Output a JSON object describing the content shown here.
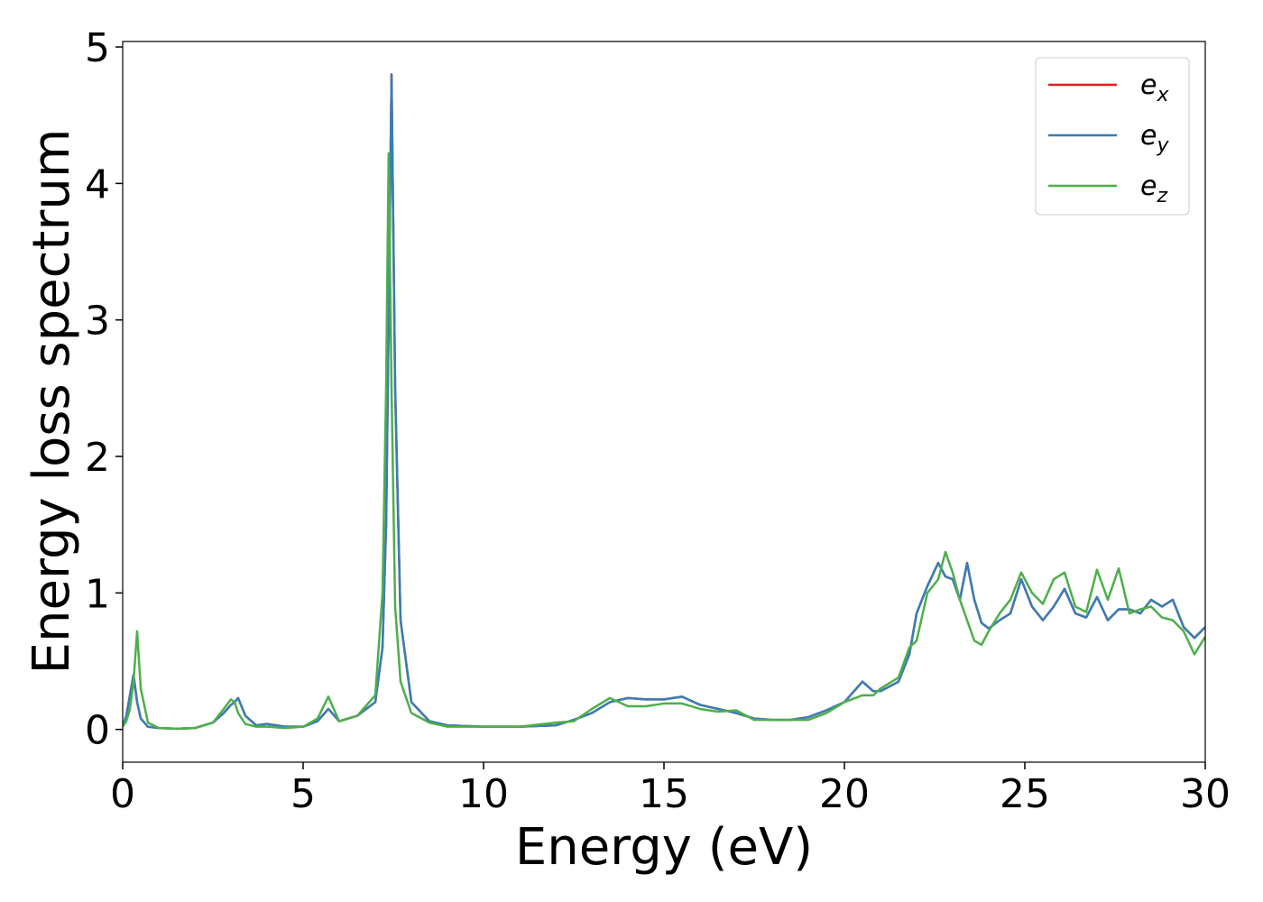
{
  "chart_data": {
    "type": "line",
    "xlabel": "Energy (eV)",
    "ylabel": "Energy loss spectrum",
    "x": [
      0,
      0.1,
      0.2,
      0.3,
      0.4,
      0.5,
      0.7,
      1,
      1.5,
      2,
      2.5,
      2.8,
      3.0,
      3.1,
      3.2,
      3.4,
      3.7,
      4,
      4.5,
      5,
      5.4,
      5.7,
      6,
      6.5,
      7,
      7.2,
      7.3,
      7.37,
      7.45,
      7.55,
      7.7,
      8,
      8.5,
      9,
      10,
      11,
      12,
      12.5,
      13,
      13.5,
      14,
      14.5,
      15,
      15.5,
      16,
      16.5,
      17,
      17.5,
      18,
      18.5,
      19,
      19.5,
      20,
      20.5,
      20.8,
      21,
      21.5,
      21.8,
      22,
      22.3,
      22.6,
      22.8,
      23,
      23.2,
      23.4,
      23.6,
      23.8,
      24,
      24.3,
      24.6,
      24.9,
      25.2,
      25.5,
      25.8,
      26.1,
      26.4,
      26.7,
      27,
      27.3,
      27.6,
      27.9,
      28.2,
      28.5,
      28.8,
      29.1,
      29.4,
      29.7,
      30
    ],
    "series": [
      {
        "name": "ex",
        "color": "#e41a1c",
        "values": [
          0.02,
          0.1,
          0.25,
          0.4,
          0.2,
          0.08,
          0.02,
          0.01,
          0.005,
          0.01,
          0.05,
          0.12,
          0.18,
          0.2,
          0.23,
          0.1,
          0.03,
          0.04,
          0.02,
          0.02,
          0.06,
          0.15,
          0.06,
          0.1,
          0.2,
          0.6,
          1.5,
          3.0,
          4.8,
          2.5,
          0.8,
          0.2,
          0.06,
          0.03,
          0.02,
          0.02,
          0.03,
          0.07,
          0.12,
          0.2,
          0.23,
          0.22,
          0.22,
          0.24,
          0.18,
          0.15,
          0.12,
          0.08,
          0.07,
          0.07,
          0.09,
          0.14,
          0.2,
          0.35,
          0.28,
          0.28,
          0.35,
          0.55,
          0.85,
          1.05,
          1.22,
          1.12,
          1.1,
          0.95,
          1.22,
          0.95,
          0.78,
          0.74,
          0.8,
          0.85,
          1.1,
          0.9,
          0.8,
          0.9,
          1.03,
          0.85,
          0.82,
          0.97,
          0.8,
          0.88,
          0.88,
          0.85,
          0.95,
          0.9,
          0.95,
          0.75,
          0.67,
          0.75
        ]
      },
      {
        "name": "ey",
        "color": "#377eb8",
        "values": [
          0.02,
          0.1,
          0.25,
          0.4,
          0.2,
          0.08,
          0.02,
          0.01,
          0.005,
          0.01,
          0.05,
          0.12,
          0.18,
          0.2,
          0.23,
          0.1,
          0.03,
          0.04,
          0.02,
          0.02,
          0.06,
          0.15,
          0.06,
          0.1,
          0.2,
          0.6,
          1.5,
          3.0,
          4.8,
          2.5,
          0.8,
          0.2,
          0.06,
          0.03,
          0.02,
          0.02,
          0.03,
          0.07,
          0.12,
          0.2,
          0.23,
          0.22,
          0.22,
          0.24,
          0.18,
          0.15,
          0.12,
          0.08,
          0.07,
          0.07,
          0.09,
          0.14,
          0.2,
          0.35,
          0.28,
          0.28,
          0.35,
          0.55,
          0.85,
          1.05,
          1.22,
          1.12,
          1.1,
          0.95,
          1.22,
          0.95,
          0.78,
          0.74,
          0.8,
          0.85,
          1.1,
          0.9,
          0.8,
          0.9,
          1.03,
          0.85,
          0.82,
          0.97,
          0.8,
          0.88,
          0.88,
          0.85,
          0.95,
          0.9,
          0.95,
          0.75,
          0.67,
          0.75
        ]
      },
      {
        "name": "ez",
        "color": "#4daf4a",
        "values": [
          0.02,
          0.06,
          0.15,
          0.35,
          0.72,
          0.3,
          0.05,
          0.01,
          0.005,
          0.01,
          0.05,
          0.15,
          0.22,
          0.2,
          0.12,
          0.04,
          0.02,
          0.02,
          0.01,
          0.02,
          0.08,
          0.24,
          0.06,
          0.1,
          0.25,
          1.0,
          2.5,
          4.22,
          2.5,
          0.9,
          0.35,
          0.12,
          0.05,
          0.02,
          0.02,
          0.02,
          0.05,
          0.06,
          0.15,
          0.23,
          0.17,
          0.17,
          0.19,
          0.19,
          0.15,
          0.13,
          0.14,
          0.07,
          0.07,
          0.07,
          0.07,
          0.12,
          0.2,
          0.25,
          0.25,
          0.3,
          0.38,
          0.6,
          0.65,
          1.0,
          1.1,
          1.3,
          1.15,
          0.95,
          0.8,
          0.65,
          0.62,
          0.72,
          0.85,
          0.95,
          1.15,
          1.0,
          0.92,
          1.1,
          1.15,
          0.9,
          0.86,
          1.17,
          0.95,
          1.18,
          0.85,
          0.88,
          0.9,
          0.82,
          0.8,
          0.72,
          0.55,
          0.68
        ]
      }
    ],
    "xlim": [
      0,
      30
    ],
    "xticks": [
      0,
      5,
      10,
      15,
      20,
      25,
      30
    ],
    "ylim": [
      -0.24,
      5.04
    ],
    "yticks": [
      0,
      1,
      2,
      3,
      4,
      5
    ],
    "grid": false,
    "legend": "upper right"
  }
}
